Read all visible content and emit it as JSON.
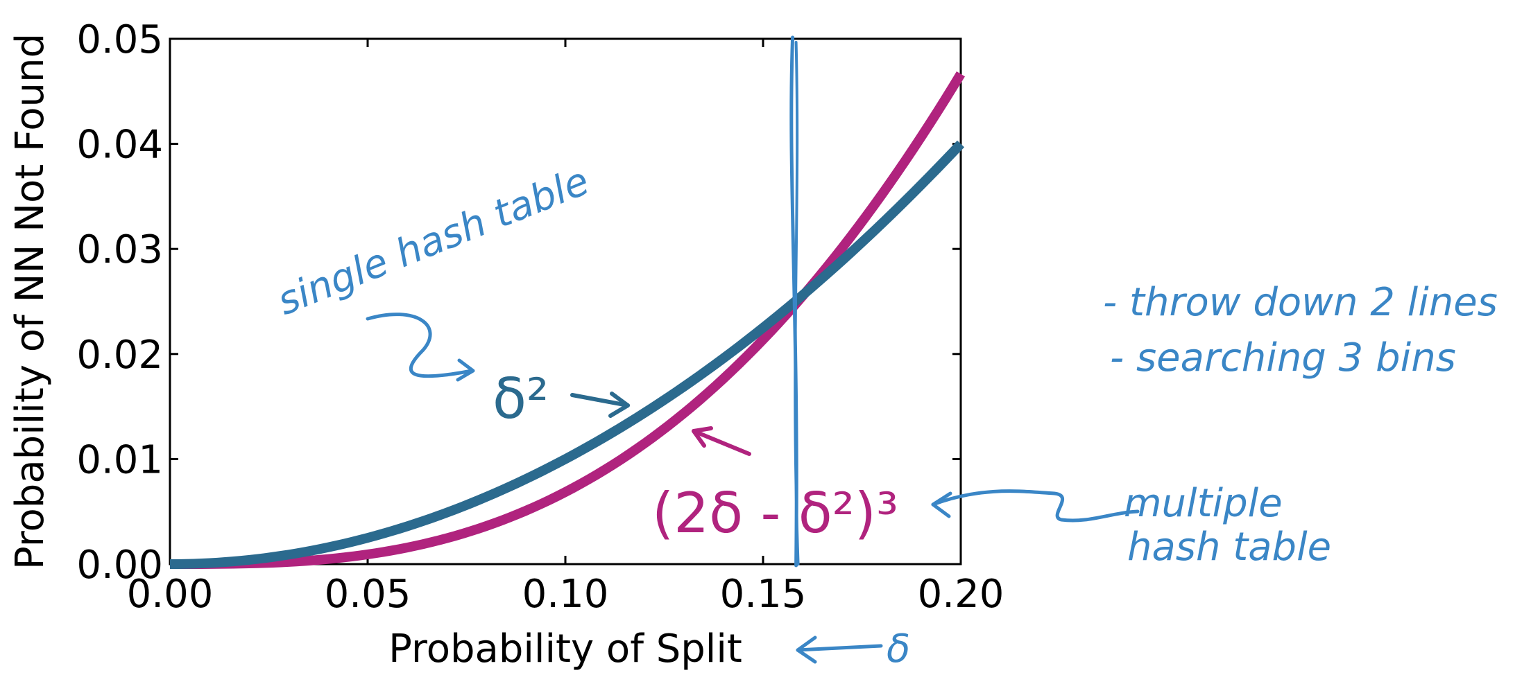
{
  "chart_data": {
    "type": "line",
    "xlabel": "Probability of Split",
    "ylabel": "Probability of NN Not Found",
    "xlim": [
      0.0,
      0.2
    ],
    "ylim": [
      0.0,
      0.05
    ],
    "xticks": [
      "0.00",
      "0.05",
      "0.10",
      "0.15",
      "0.20"
    ],
    "yticks": [
      "0.00",
      "0.01",
      "0.02",
      "0.03",
      "0.04",
      "0.05"
    ],
    "grid": false,
    "series": [
      {
        "name": "δ²",
        "color": "#2b6a8e",
        "x": [
          0.0,
          0.02,
          0.04,
          0.06,
          0.08,
          0.1,
          0.12,
          0.14,
          0.16,
          0.18,
          0.2
        ],
        "y": [
          0.0,
          0.0004,
          0.0016,
          0.0036,
          0.0064,
          0.01,
          0.0144,
          0.0196,
          0.0256,
          0.0324,
          0.04
        ]
      },
      {
        "name": "(2δ - δ²)³",
        "color": "#b0237e",
        "x": [
          0.0,
          0.02,
          0.04,
          0.06,
          0.08,
          0.1,
          0.12,
          0.14,
          0.16,
          0.18,
          0.2
        ],
        "y": [
          0.0,
          5.9e-05,
          0.000441,
          0.001405,
          0.003137,
          0.005832,
          0.009662,
          0.01479,
          0.02134,
          0.02944,
          0.04666
        ]
      }
    ],
    "vertical_marker_x": 0.158
  },
  "annotations": {
    "single_hash_table": "single hash table",
    "delta_sq": "δ²",
    "multi_formula": "(2δ - δ²)³",
    "multiple": "multiple",
    "hash_table": "hash table",
    "note_line1": "- throw down 2 lines",
    "note_line2": "- searching 3 bins",
    "delta_symbol": "δ"
  }
}
